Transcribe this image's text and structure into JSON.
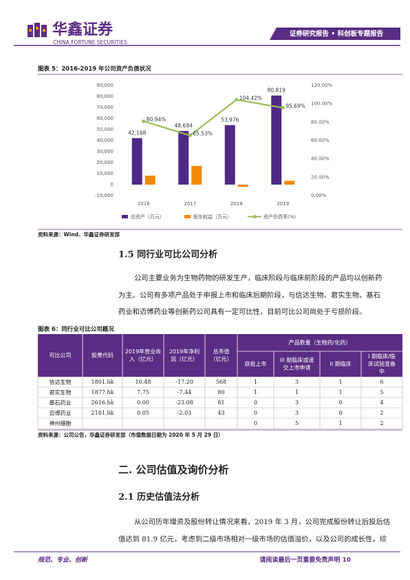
{
  "header": {
    "brand": "华鑫证券",
    "brand_en": "CHINA FORTUNE SECURITIES",
    "banner": "证券研究报告 • 科创板专题报告"
  },
  "figure5": {
    "title": "图表 5：2016-2019 年公司资产负债状况",
    "source": "资料来源：Wind、华鑫证券研发部"
  },
  "chart_data": {
    "type": "bar-line",
    "categories": [
      "2016",
      "2017",
      "2018",
      "2019"
    ],
    "series": [
      {
        "name": "总资产（万元）",
        "type": "bar",
        "color": "#4e2a84",
        "values": [
          42168,
          48694,
          53976,
          80819
        ],
        "value_labels": [
          "42,168",
          "48,694",
          "53,976",
          "80,819"
        ]
      },
      {
        "name": "股东权益（万元）",
        "type": "bar",
        "color": "#f08a00",
        "values": [
          8200,
          17000,
          -2000,
          3500
        ]
      },
      {
        "name": "资产负债率(%)",
        "type": "line",
        "axis": "y2",
        "color": "#9bbb59",
        "values": [
          80.94,
          65.53,
          104.42,
          95.69
        ],
        "value_labels": [
          "80.94%",
          "65.53%",
          "104.42%",
          "95.69%"
        ]
      }
    ],
    "ylim": [
      -10000,
      90000
    ],
    "yticks": [
      {
        "value": -10000,
        "label": "-10,000"
      },
      0,
      {
        "value": 10000,
        "label": "10,000"
      },
      {
        "value": 20000,
        "label": "20,000"
      },
      {
        "value": 30000,
        "label": "30,000"
      },
      {
        "value": 40000,
        "label": "40,000"
      },
      {
        "value": 50000,
        "label": "50,000"
      },
      {
        "value": 60000,
        "label": "60,000"
      },
      {
        "value": 70000,
        "label": "70,000"
      },
      {
        "value": 80000,
        "label": "80,000"
      },
      {
        "value": 90000,
        "label": "90,000"
      }
    ],
    "y2lim": [
      0,
      120
    ],
    "y2ticks": [
      {
        "value": 0,
        "label": "0.00%"
      },
      {
        "value": 20,
        "label": "20.00%"
      },
      {
        "value": 40,
        "label": "40.00%"
      },
      {
        "value": 60,
        "label": "60.00%"
      },
      {
        "value": 80,
        "label": "80.00%"
      },
      {
        "value": 100,
        "label": "100.00%"
      },
      {
        "value": 120,
        "label": "120.00%"
      }
    ]
  },
  "section15": {
    "heading": "1.5 同行业可比公司分析",
    "lines": [
      "公司主要业务为生物药物的研发生产，临床阶段与临床前阶段的产品均以创新药",
      "为主。公司有多项产品处于申报上市和临床后期阶段，与信达生物、君实生物、基石",
      "药业和迈博药业等创新药公司具有一定可比性，目前可比公司尚处于亏损阶段。"
    ]
  },
  "table": {
    "title": "图表 6：同行业可比公司概况",
    "columns": [
      [
        "可比公司"
      ],
      [
        "股票代码"
      ],
      [
        "2019年营业收",
        "入（亿元）"
      ],
      [
        "2019年净利",
        "润（亿元）"
      ],
      [
        "总市值",
        "（亿元）"
      ]
    ],
    "group": "产品数量（生物药/化药）",
    "subcolumns": [
      [
        "获批上市"
      ],
      [
        "III 期临床或递",
        "交上市申请"
      ],
      [
        "II 期临床"
      ],
      [
        "I 期临床/临",
        "床试验准备",
        "中"
      ]
    ],
    "rows": [
      [
        "信达生物",
        "1801.hk",
        "10.48",
        "-17.20",
        "568",
        "1",
        "3",
        "1",
        "6"
      ],
      [
        "君实生物",
        "1877.hk",
        "7.75",
        "-7.44",
        "80",
        "1",
        "1",
        "1",
        "5"
      ],
      [
        "基石药业",
        "2616.hk",
        "0.00",
        "-23.08",
        "81",
        "0",
        "3",
        "0",
        "4"
      ],
      [
        "迈博药业",
        "2181.hk",
        "0.05",
        "-2.03",
        "43",
        "0",
        "3",
        "0",
        "2"
      ],
      [
        "神州细胞",
        null,
        null,
        null,
        null,
        "0",
        "5",
        "1",
        "2"
      ]
    ],
    "source": "资料来源：公司公告，华鑫证券研发部（市值数据日期为 2020 年 5 月 29 日）"
  },
  "section2": {
    "heading": "二. 公司估值及询价分析",
    "subheading": "2.1  历史估值法分析",
    "lines": [
      "从公司历年增资及股份转让情况来看，2019 年 3 月，公司完成股份转让后投后估",
      "值达到 81.9 亿元，考虑到二级市场相对一级市场的估值溢价，以及公司的成长性，综"
    ]
  },
  "footer": {
    "left": "规范、专业、创新",
    "right": "请阅读最后一页重要免责声明 10"
  }
}
